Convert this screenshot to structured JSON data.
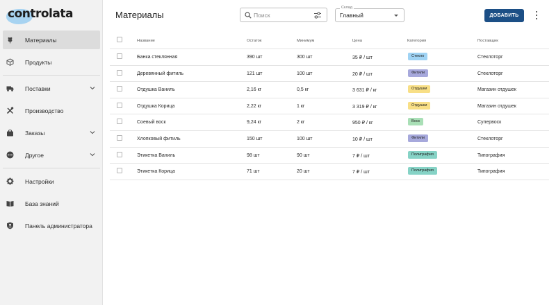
{
  "app": {
    "logo_text": "controlata"
  },
  "sidebar": {
    "groups": [
      [
        {
          "label": "Материалы",
          "icon": "wheat-icon",
          "active": true,
          "has_chevron": false
        },
        {
          "label": "Продукты",
          "icon": "box-icon",
          "active": false,
          "has_chevron": false
        }
      ],
      [
        {
          "label": "Поставки",
          "icon": "truck-icon",
          "active": false,
          "has_chevron": true
        },
        {
          "label": "Производство",
          "icon": "tools-icon",
          "active": false,
          "has_chevron": false
        },
        {
          "label": "Заказы",
          "icon": "bag-icon",
          "active": false,
          "has_chevron": true
        },
        {
          "label": "Другое",
          "icon": "more-circle-icon",
          "active": false,
          "has_chevron": true
        }
      ],
      [
        {
          "label": "Настройки",
          "icon": "gear-icon",
          "active": false,
          "has_chevron": false
        },
        {
          "label": "База знаний",
          "icon": "book-icon",
          "active": false,
          "has_chevron": false
        },
        {
          "label": "Панель администратора",
          "icon": "shield-user-icon",
          "active": false,
          "has_chevron": false
        }
      ]
    ]
  },
  "header": {
    "title": "Материалы",
    "search": {
      "placeholder": "Поиск",
      "value": ""
    },
    "warehouse": {
      "label": "Склад",
      "value": "Главный"
    },
    "add_label": "ДОБАВИТЬ"
  },
  "table": {
    "columns": [
      "Название",
      "Остаток",
      "Минимум",
      "Цена",
      "Категория",
      "Поставщик"
    ],
    "rows": [
      {
        "name": "Банка стеклянная",
        "stock": "390 шт",
        "min": "300 шт",
        "price": "35 ₽ / шт",
        "category": "Стекло",
        "category_color": "#9fd3f4",
        "supplier": "Стеклоторг"
      },
      {
        "name": "Деревянный фитиль",
        "stock": "121 шт",
        "min": "100 шт",
        "price": "20 ₽ / шт",
        "category": "Фитили",
        "category_color": "#a7a9dc",
        "supplier": "Стеклоторг"
      },
      {
        "name": "Отдушка Ваниль",
        "stock": "2,16 кг",
        "min": "0,5 кг",
        "price": "3 631 ₽ / кг",
        "category": "Отдушки",
        "category_color": "#f8df86",
        "supplier": "Магазин отдушек"
      },
      {
        "name": "Отдушка Корица",
        "stock": "2,22 кг",
        "min": "1 кг",
        "price": "3 319 ₽ / кг",
        "category": "Отдушки",
        "category_color": "#f8df86",
        "supplier": "Магазин отдушек"
      },
      {
        "name": "Соевый воск",
        "stock": "9,24 кг",
        "min": "2 кг",
        "price": "950 ₽ / кг",
        "category": "Воск",
        "category_color": "#a9dfb6",
        "supplier": "Супервоск"
      },
      {
        "name": "Хлопковый фитиль",
        "stock": "150 шт",
        "min": "100 шт",
        "price": "10 ₽ / шт",
        "category": "Фитили",
        "category_color": "#a7a9dc",
        "supplier": "Стеклоторг"
      },
      {
        "name": "Этикетка Ваниль",
        "stock": "98 шт",
        "min": "90 шт",
        "price": "7 ₽ / шт",
        "category": "Полиграфия",
        "category_color": "#86d3c6",
        "supplier": "Типография"
      },
      {
        "name": "Этикетка Корица",
        "stock": "71 шт",
        "min": "20 шт",
        "price": "7 ₽ / шт",
        "category": "Полиграфия",
        "category_color": "#86d3c6",
        "supplier": "Типография"
      }
    ]
  }
}
